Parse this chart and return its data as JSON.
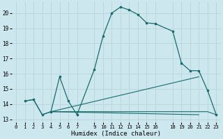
{
  "xlabel": "Humidex (Indice chaleur)",
  "bg_color": "#cce8ee",
  "line_color": "#1a6b6b",
  "grid_color": "#b8d8de",
  "xlim": [
    -0.5,
    23.5
  ],
  "ylim": [
    12.8,
    20.7
  ],
  "yticks": [
    13,
    14,
    15,
    16,
    17,
    18,
    19,
    20
  ],
  "xticks": [
    0,
    1,
    2,
    3,
    4,
    5,
    6,
    7,
    9,
    10,
    11,
    12,
    13,
    14,
    15,
    16,
    18,
    19,
    20,
    21,
    22,
    23
  ],
  "curve1_x": [
    1,
    2,
    3,
    4,
    5,
    6,
    7,
    9,
    10,
    11,
    12,
    13,
    14,
    15,
    16,
    18,
    19,
    20,
    21,
    22,
    23
  ],
  "curve1_y": [
    14.2,
    14.3,
    13.3,
    13.5,
    15.8,
    14.2,
    13.3,
    16.3,
    18.5,
    20.0,
    20.4,
    20.2,
    19.9,
    19.35,
    19.3,
    18.8,
    16.7,
    16.2,
    16.2,
    14.9,
    13.3
  ],
  "curve2_x": [
    1,
    2,
    3,
    4,
    5,
    6,
    7,
    9,
    10,
    11,
    12,
    13,
    14,
    15,
    16,
    18,
    19,
    20,
    21,
    22,
    23
  ],
  "curve2_y": [
    14.2,
    14.3,
    13.3,
    13.5,
    13.5,
    13.5,
    13.5,
    13.5,
    13.5,
    13.5,
    13.5,
    13.5,
    13.5,
    13.5,
    13.5,
    13.5,
    13.5,
    13.5,
    13.5,
    13.5,
    13.3
  ],
  "line3_x": [
    4,
    21
  ],
  "line3_y": [
    13.5,
    15.8
  ],
  "line4_x": [
    4,
    21
  ],
  "line4_y": [
    13.5,
    13.3
  ]
}
